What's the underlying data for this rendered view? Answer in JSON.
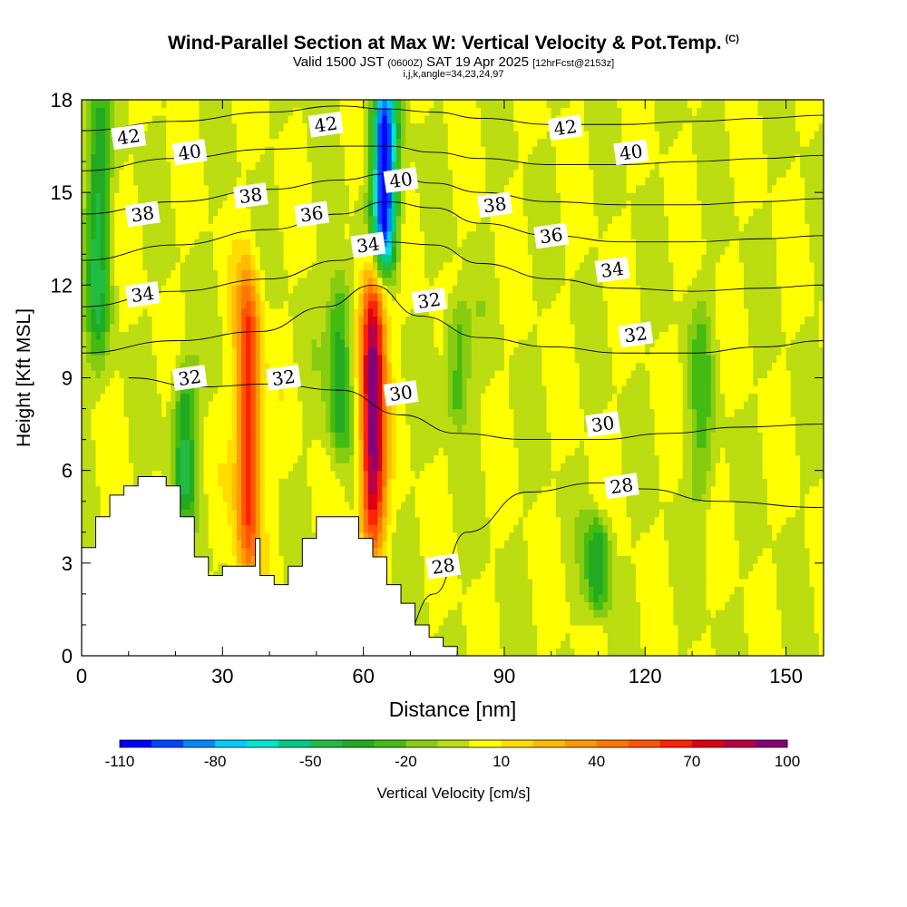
{
  "title": "Wind-Parallel Section at Max W: Vertical Velocity & Pot.Temp.",
  "copyright": "(C)",
  "subtitle_main": "Valid 1500 JST",
  "subtitle_zulu": "(0600Z)",
  "subtitle_date": "SAT 19 Apr 2025",
  "subtitle_fcst": "[12hrFcst@2153z]",
  "subtitle2": "i,j,k,angle=34,23,24,97",
  "chart_data": {
    "type": "heatmap",
    "xlabel": "Distance [nm]",
    "ylabel": "Height [Kft MSL]",
    "xlim": [
      0,
      158
    ],
    "ylim": [
      0,
      18
    ],
    "x_ticks": [
      0,
      30,
      60,
      90,
      120,
      150
    ],
    "y_ticks": [
      0,
      3,
      6,
      9,
      12,
      15,
      18
    ],
    "colorbar": {
      "label": "Vertical Velocity [cm/s]",
      "tick_labels": [
        -110,
        -80,
        -50,
        -20,
        10,
        40,
        70,
        100
      ],
      "min": -110,
      "max": 100,
      "step": 10,
      "colors": [
        "#0000ff",
        "#0044ff",
        "#0088ff",
        "#00ccff",
        "#00e5d0",
        "#00cc88",
        "#22bb44",
        "#22aa22",
        "#44bb11",
        "#88cc11",
        "#bbdd11",
        "#ffff00",
        "#ffdd00",
        "#ffbb00",
        "#ff9900",
        "#ff7700",
        "#ff5500",
        "#ff2200",
        "#dd0011",
        "#bb0044",
        "#880077"
      ]
    },
    "background_range": [
      -10,
      10
    ],
    "features": [
      {
        "label": "updraft",
        "x": 35.5,
        "y_range": [
          3,
          12
        ],
        "peak": 70
      },
      {
        "label": "updraft",
        "x": 62,
        "y_range": [
          4,
          12
        ],
        "peak": 100
      },
      {
        "label": "downdraft",
        "x": 64.5,
        "y_range": [
          13,
          18
        ],
        "peak": -110
      },
      {
        "label": "downdraft",
        "x": 3.5,
        "y_range": [
          10,
          18
        ],
        "peak": -40
      },
      {
        "label": "downdraft",
        "x": 22,
        "y_range": [
          5,
          9
        ],
        "peak": -40
      },
      {
        "label": "downdraft",
        "x": 55,
        "y_range": [
          7,
          12
        ],
        "peak": -40
      },
      {
        "label": "downdraft",
        "x": 80,
        "y_range": [
          8,
          11
        ],
        "peak": -30
      },
      {
        "label": "downdraft",
        "x": 110,
        "y_range": [
          2,
          4
        ],
        "peak": -40
      },
      {
        "label": "downdraft",
        "x": 132,
        "y_range": [
          5,
          11
        ],
        "peak": -20
      }
    ],
    "isentropes": [
      {
        "theta": 28,
        "points": [
          [
            68,
            0.5
          ],
          [
            75,
            2
          ],
          [
            82,
            4
          ],
          [
            95,
            5.3
          ],
          [
            110,
            5.6
          ],
          [
            120,
            5.4
          ],
          [
            135,
            5
          ],
          [
            158,
            4.8
          ]
        ]
      },
      {
        "theta": 30,
        "points": [
          [
            10,
            9
          ],
          [
            25,
            8.7
          ],
          [
            40,
            8.8
          ],
          [
            55,
            8.6
          ],
          [
            68,
            7.8
          ],
          [
            80,
            7.2
          ],
          [
            95,
            7
          ],
          [
            110,
            7
          ],
          [
            125,
            7.2
          ],
          [
            140,
            7.4
          ],
          [
            158,
            7.5
          ]
        ]
      },
      {
        "theta": 32,
        "points": [
          [
            0,
            9.8
          ],
          [
            20,
            10.2
          ],
          [
            38,
            10.5
          ],
          [
            52,
            11.3
          ],
          [
            62,
            12
          ],
          [
            72,
            11
          ],
          [
            85,
            10.3
          ],
          [
            100,
            10
          ],
          [
            115,
            9.8
          ],
          [
            130,
            9.8
          ],
          [
            145,
            10
          ],
          [
            158,
            10.2
          ]
        ]
      },
      {
        "theta": 34,
        "points": [
          [
            0,
            11.3
          ],
          [
            20,
            11.8
          ],
          [
            40,
            12.2
          ],
          [
            55,
            12.8
          ],
          [
            65,
            13.4
          ],
          [
            75,
            13.3
          ],
          [
            85,
            12.7
          ],
          [
            100,
            12.2
          ],
          [
            115,
            11.9
          ],
          [
            130,
            11.8
          ],
          [
            145,
            11.9
          ],
          [
            158,
            12
          ]
        ]
      },
      {
        "theta": 36,
        "points": [
          [
            0,
            12.8
          ],
          [
            20,
            13.3
          ],
          [
            40,
            13.8
          ],
          [
            55,
            14.3
          ],
          [
            65,
            14.7
          ],
          [
            75,
            14.5
          ],
          [
            85,
            14
          ],
          [
            100,
            13.6
          ],
          [
            115,
            13.4
          ],
          [
            130,
            13.4
          ],
          [
            145,
            13.5
          ],
          [
            158,
            13.6
          ]
        ]
      },
      {
        "theta": 38,
        "points": [
          [
            0,
            14.3
          ],
          [
            20,
            14.7
          ],
          [
            40,
            15.1
          ],
          [
            55,
            15.4
          ],
          [
            65,
            15.6
          ],
          [
            75,
            15.3
          ],
          [
            85,
            15
          ],
          [
            100,
            14.7
          ],
          [
            115,
            14.6
          ],
          [
            130,
            14.6
          ],
          [
            145,
            14.7
          ],
          [
            158,
            14.8
          ]
        ]
      },
      {
        "theta": 40,
        "points": [
          [
            0,
            15.7
          ],
          [
            20,
            16.1
          ],
          [
            40,
            16.4
          ],
          [
            55,
            16.5
          ],
          [
            65,
            16.5
          ],
          [
            75,
            16.3
          ],
          [
            85,
            16.1
          ],
          [
            100,
            15.9
          ],
          [
            115,
            15.9
          ],
          [
            130,
            16
          ],
          [
            145,
            16.1
          ],
          [
            158,
            16.2
          ]
        ]
      },
      {
        "theta": 42,
        "points": [
          [
            0,
            17
          ],
          [
            20,
            17.3
          ],
          [
            40,
            17.6
          ],
          [
            55,
            17.8
          ],
          [
            65,
            17.7
          ],
          [
            75,
            17.6
          ],
          [
            85,
            17.4
          ],
          [
            100,
            17.2
          ],
          [
            115,
            17.2
          ],
          [
            130,
            17.3
          ],
          [
            145,
            17.4
          ],
          [
            158,
            17.5
          ]
        ]
      }
    ],
    "isentrope_labels": [
      {
        "text": "42",
        "x": 10,
        "y": 16.8
      },
      {
        "text": "40",
        "x": 23,
        "y": 16.3
      },
      {
        "text": "42",
        "x": 52,
        "y": 17.2
      },
      {
        "text": "42",
        "x": 103,
        "y": 17.1
      },
      {
        "text": "40",
        "x": 117,
        "y": 16.3
      },
      {
        "text": "40",
        "x": 68,
        "y": 15.4
      },
      {
        "text": "38",
        "x": 13,
        "y": 14.3
      },
      {
        "text": "38",
        "x": 36,
        "y": 14.9
      },
      {
        "text": "38",
        "x": 88,
        "y": 14.6
      },
      {
        "text": "36",
        "x": 49,
        "y": 14.3
      },
      {
        "text": "36",
        "x": 100,
        "y": 13.6
      },
      {
        "text": "34",
        "x": 13,
        "y": 11.7
      },
      {
        "text": "34",
        "x": 61,
        "y": 13.3
      },
      {
        "text": "34",
        "x": 113,
        "y": 12.5
      },
      {
        "text": "32",
        "x": 74,
        "y": 11.5
      },
      {
        "text": "32",
        "x": 118,
        "y": 10.4
      },
      {
        "text": "32",
        "x": 23,
        "y": 9
      },
      {
        "text": "32",
        "x": 43,
        "y": 9
      },
      {
        "text": "30",
        "x": 68,
        "y": 8.5
      },
      {
        "text": "30",
        "x": 111,
        "y": 7.5
      },
      {
        "text": "28",
        "x": 115,
        "y": 5.5
      },
      {
        "text": "28",
        "x": 77,
        "y": 2.9
      }
    ],
    "terrain": [
      [
        0,
        0
      ],
      [
        0,
        3.5
      ],
      [
        3,
        3.5
      ],
      [
        3,
        4.5
      ],
      [
        6,
        4.5
      ],
      [
        6,
        5.2
      ],
      [
        9,
        5.2
      ],
      [
        9,
        5.5
      ],
      [
        12,
        5.5
      ],
      [
        12,
        5.8
      ],
      [
        18,
        5.8
      ],
      [
        18,
        5.5
      ],
      [
        21,
        5.5
      ],
      [
        21,
        4.5
      ],
      [
        24,
        4.5
      ],
      [
        24,
        3.2
      ],
      [
        27,
        3.2
      ],
      [
        27,
        2.6
      ],
      [
        30,
        2.6
      ],
      [
        30,
        2.9
      ],
      [
        37,
        2.9
      ],
      [
        37,
        3.8
      ],
      [
        38,
        3.8
      ],
      [
        38,
        2.6
      ],
      [
        41,
        2.6
      ],
      [
        41,
        2.3
      ],
      [
        44,
        2.3
      ],
      [
        44,
        2.9
      ],
      [
        47,
        2.9
      ],
      [
        47,
        3.8
      ],
      [
        50,
        3.8
      ],
      [
        50,
        4.5
      ],
      [
        59,
        4.5
      ],
      [
        59,
        3.8
      ],
      [
        62,
        3.8
      ],
      [
        62,
        3.2
      ],
      [
        65,
        3.2
      ],
      [
        65,
        2.3
      ],
      [
        68,
        2.3
      ],
      [
        68,
        1.7
      ],
      [
        71,
        1.7
      ],
      [
        71,
        1
      ],
      [
        74,
        1
      ],
      [
        74,
        0.6
      ],
      [
        77,
        0.6
      ],
      [
        77,
        0.3
      ],
      [
        80,
        0.3
      ],
      [
        80,
        0
      ]
    ]
  }
}
